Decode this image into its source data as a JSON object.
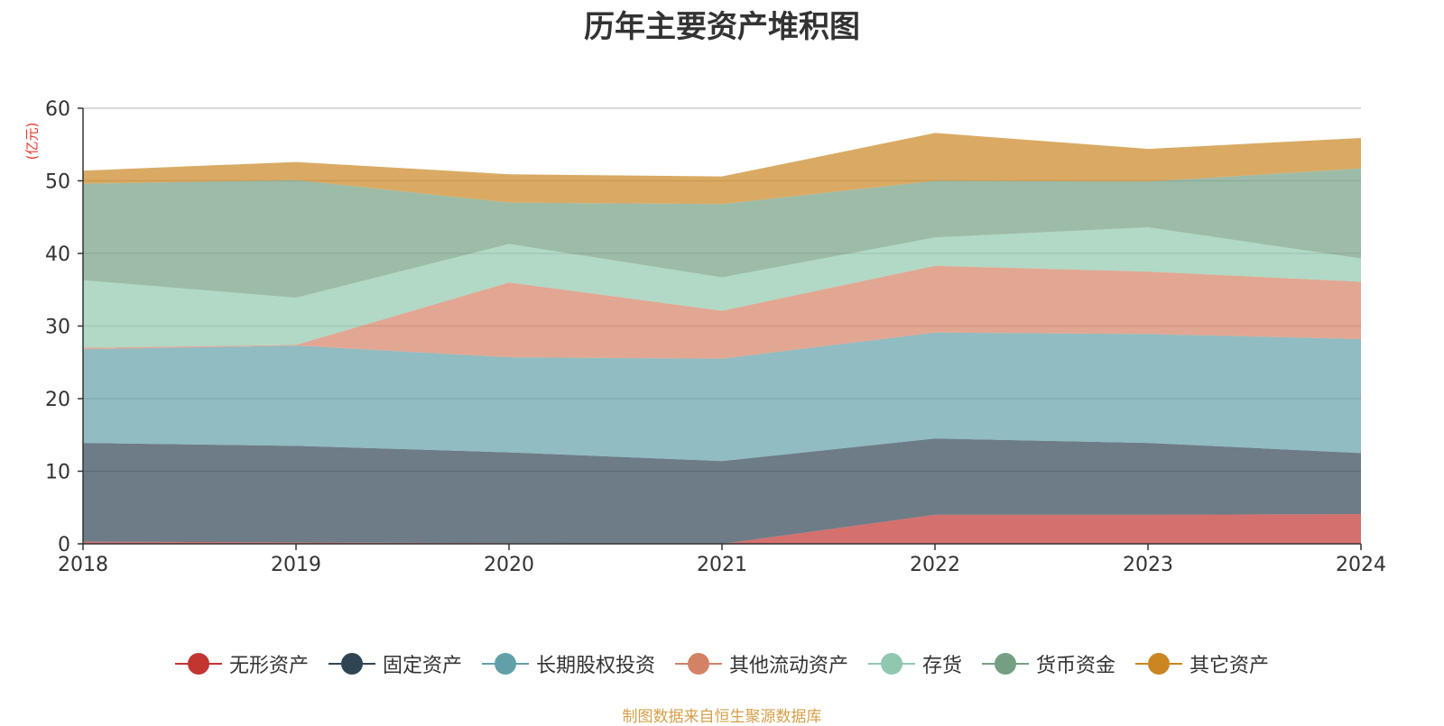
{
  "chart_data": {
    "type": "area",
    "stacked": true,
    "title": "历年主要资产堆积图",
    "ylabel": "(亿元)",
    "x": [
      "2018",
      "2019",
      "2020",
      "2021",
      "2022",
      "2023",
      "2024"
    ],
    "ylim": [
      0,
      60
    ],
    "yticks": [
      0,
      10,
      20,
      30,
      40,
      50,
      60
    ],
    "grid": true,
    "legend_position": "bottom",
    "series": [
      {
        "name": "无形资产",
        "color": "#c23531",
        "values": [
          0.3,
          0.2,
          0.1,
          0.0,
          4.0,
          4.0,
          4.1
        ]
      },
      {
        "name": "固定资产",
        "color": "#2f4554",
        "values": [
          13.6,
          13.3,
          12.5,
          11.4,
          10.5,
          9.9,
          8.4
        ]
      },
      {
        "name": "长期股权投资",
        "color": "#61a0a8",
        "values": [
          12.9,
          13.8,
          13.1,
          14.1,
          14.6,
          15.0,
          15.7
        ]
      },
      {
        "name": "其他流动资产",
        "color": "#d48265",
        "values": [
          0.2,
          0.1,
          10.3,
          6.6,
          9.2,
          8.6,
          7.9
        ]
      },
      {
        "name": "存货",
        "color": "#91c7ae",
        "values": [
          9.3,
          6.5,
          5.3,
          4.6,
          3.9,
          6.1,
          3.2
        ]
      },
      {
        "name": "货币资金",
        "color": "#749f83",
        "values": [
          13.3,
          16.2,
          5.7,
          10.1,
          7.8,
          6.3,
          12.4
        ]
      },
      {
        "name": "其它资产",
        "color": "#ca8622",
        "values": [
          1.8,
          2.5,
          3.9,
          3.8,
          6.6,
          4.5,
          4.2
        ]
      }
    ]
  },
  "source_note": "制图数据来自恒生聚源数据库"
}
